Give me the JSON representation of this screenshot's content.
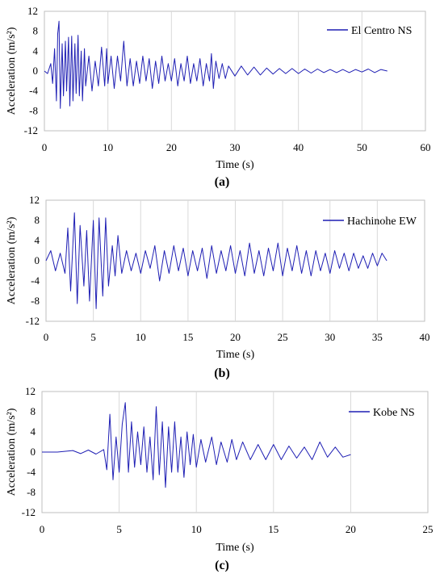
{
  "style": {
    "line_color": "#1f1fb4",
    "grid_color": "#d9d9d9",
    "frame_color": "#bfbfbf"
  },
  "chart_data": [
    {
      "panel": "a",
      "type": "line",
      "ylabel": "Acceleration (m/s²)",
      "xlabel": "Time (s)",
      "xlim": [
        0,
        60
      ],
      "ylim": [
        -12,
        12
      ],
      "xticks": [
        0,
        10,
        20,
        30,
        40,
        50,
        60
      ],
      "yticks": [
        12,
        8,
        4,
        0,
        -4,
        -8,
        -12
      ],
      "legend": "El Centro NS",
      "legend_position": "top-right",
      "grid": "vertical",
      "series": [
        {
          "name": "El Centro NS",
          "x": [
            0,
            0.5,
            1,
            1.3,
            1.6,
            1.9,
            2.1,
            2.3,
            2.5,
            2.8,
            3,
            3.3,
            3.5,
            3.8,
            4,
            4.3,
            4.5,
            4.8,
            5,
            5.3,
            5.5,
            5.8,
            6,
            6.3,
            6.5,
            7,
            7.5,
            8,
            8.5,
            9,
            9.5,
            9.8,
            10,
            10.5,
            11,
            11.5,
            12,
            12.5,
            13,
            13.5,
            14,
            14.5,
            15,
            15.5,
            16,
            16.5,
            17,
            17.5,
            18,
            18.5,
            19,
            19.5,
            20,
            20.5,
            21,
            21.5,
            22,
            22.5,
            23,
            23.5,
            24,
            24.5,
            25,
            25.5,
            26,
            26.3,
            26.6,
            27,
            27.5,
            28,
            28.5,
            29,
            30,
            31,
            32,
            33,
            34,
            35,
            36,
            37,
            38,
            39,
            40,
            41,
            42,
            43,
            44,
            45,
            46,
            47,
            48,
            49,
            50,
            51,
            52,
            53,
            54
          ],
          "y": [
            0,
            -0.5,
            1.5,
            -2.5,
            4.5,
            -6,
            7.5,
            10,
            -7.5,
            5.5,
            -5,
            6,
            -4,
            6.8,
            -7,
            7,
            -6,
            5.5,
            -4.5,
            7.2,
            -5,
            4,
            -6,
            4.5,
            -3,
            3,
            -4,
            2,
            -3,
            4.8,
            -3,
            4.5,
            -2.5,
            3,
            -3.5,
            3,
            -2,
            6,
            -3,
            2.5,
            -3,
            2,
            -2.5,
            3,
            -2,
            2.5,
            -3.5,
            2,
            -2.5,
            3,
            -2,
            1.5,
            -2,
            2.5,
            -3,
            1.5,
            -2,
            3,
            -2.5,
            1.5,
            -2,
            2.5,
            -3,
            1.5,
            -2,
            3.5,
            -3.5,
            2,
            -1.5,
            1.5,
            -1.5,
            1,
            -1,
            1,
            -0.8,
            0.8,
            -0.8,
            0.6,
            -0.6,
            0.5,
            -0.5,
            0.5,
            -0.5,
            0.4,
            -0.4,
            0.4,
            -0.3,
            0.3,
            -0.3,
            0.3,
            -0.3,
            0.3,
            -0.2,
            0.4,
            -0.3,
            0.3,
            0
          ]
        }
      ]
    },
    {
      "panel": "b",
      "type": "line",
      "ylabel": "Acceleration (m/s²)",
      "xlabel": "Time (s)",
      "xlim": [
        0,
        40
      ],
      "ylim": [
        -12,
        12
      ],
      "xticks": [
        0,
        5,
        10,
        15,
        20,
        25,
        30,
        35,
        40
      ],
      "yticks": [
        12,
        8,
        4,
        0,
        -4,
        -8,
        -12
      ],
      "legend": "Hachinohe EW",
      "legend_position": "top-right",
      "grid": "vertical",
      "series": [
        {
          "name": "Hachinohe EW",
          "x": [
            0,
            0.5,
            1,
            1.5,
            2,
            2.3,
            2.6,
            3,
            3.3,
            3.6,
            4,
            4.3,
            4.6,
            5,
            5.3,
            5.6,
            6,
            6.3,
            6.6,
            7,
            7.3,
            7.6,
            8,
            8.5,
            9,
            9.5,
            10,
            10.5,
            11,
            11.5,
            12,
            12.5,
            13,
            13.5,
            14,
            14.5,
            15,
            15.5,
            16,
            16.5,
            17,
            17.5,
            18,
            18.5,
            19,
            19.5,
            20,
            20.5,
            21,
            21.5,
            22,
            22.5,
            23,
            23.5,
            24,
            24.5,
            25,
            25.5,
            26,
            26.5,
            27,
            27.5,
            28,
            28.5,
            29,
            29.5,
            30,
            30.5,
            31,
            31.5,
            32,
            32.5,
            33,
            33.5,
            34,
            34.5,
            35,
            35.5,
            36
          ],
          "y": [
            0,
            2,
            -2,
            1.5,
            -2.5,
            6.5,
            -6,
            9.5,
            -8.5,
            7,
            -5,
            6,
            -8,
            8,
            -9.5,
            8.5,
            -7,
            8.5,
            -5,
            3,
            -3,
            5,
            -2.5,
            2,
            -2,
            1.5,
            -2.5,
            2,
            -1.5,
            3,
            -4,
            2,
            -2.5,
            3,
            -2,
            2.5,
            -3,
            2,
            -2,
            2.5,
            -3.5,
            3,
            -2.5,
            2,
            -2,
            3,
            -2.5,
            2,
            -3,
            3.5,
            -2.5,
            2,
            -3,
            2.5,
            -2,
            3.5,
            -3,
            2.5,
            -2,
            3,
            -2.5,
            2,
            -3,
            2,
            -2,
            1.5,
            -2.5,
            2,
            -1.5,
            1.5,
            -2,
            1.5,
            -1.5,
            1,
            -1.5,
            1.5,
            -1,
            1.5,
            0
          ]
        }
      ]
    },
    {
      "panel": "c",
      "type": "line",
      "ylabel": "Acceleration (m/s²)",
      "xlabel": "Time (s)",
      "xlim": [
        0,
        25
      ],
      "ylim": [
        -12,
        12
      ],
      "xticks": [
        0,
        5,
        10,
        15,
        20,
        25
      ],
      "yticks": [
        12,
        8,
        4,
        0,
        -4,
        -8,
        -12
      ],
      "legend": "Kobe NS",
      "legend_position": "top-right",
      "grid": "vertical",
      "series": [
        {
          "name": "Kobe NS",
          "x": [
            0,
            1,
            2,
            2.5,
            3,
            3.5,
            4,
            4.2,
            4.4,
            4.6,
            4.8,
            5,
            5.2,
            5.4,
            5.6,
            5.8,
            6,
            6.2,
            6.4,
            6.6,
            6.8,
            7,
            7.2,
            7.4,
            7.6,
            7.8,
            8,
            8.2,
            8.4,
            8.6,
            8.8,
            9,
            9.2,
            9.4,
            9.6,
            9.8,
            10,
            10.3,
            10.6,
            11,
            11.3,
            11.6,
            12,
            12.3,
            12.6,
            13,
            13.5,
            14,
            14.5,
            15,
            15.5,
            16,
            16.5,
            17,
            17.5,
            18,
            18.5,
            19,
            19.5,
            20
          ],
          "y": [
            0,
            0,
            0.3,
            -0.3,
            0.4,
            -0.4,
            0.5,
            -3.5,
            7.5,
            -5.5,
            3,
            -4,
            5.5,
            9.8,
            -4,
            6,
            -3,
            4,
            -2.5,
            5,
            -4,
            3,
            -5.5,
            9,
            -4.5,
            6,
            -7,
            5,
            -4,
            6,
            -4,
            3,
            -5,
            4,
            -2.5,
            3.5,
            -3,
            2.5,
            -2,
            3,
            -2.5,
            2,
            -2,
            2.5,
            -1.5,
            2,
            -1.5,
            1.5,
            -1.5,
            1.5,
            -1.5,
            1.2,
            -1.2,
            1,
            -1.5,
            2,
            -1,
            1,
            -1,
            -0.5
          ]
        }
      ]
    }
  ],
  "sub_labels": [
    "(a)",
    "(b)",
    "(c)"
  ]
}
